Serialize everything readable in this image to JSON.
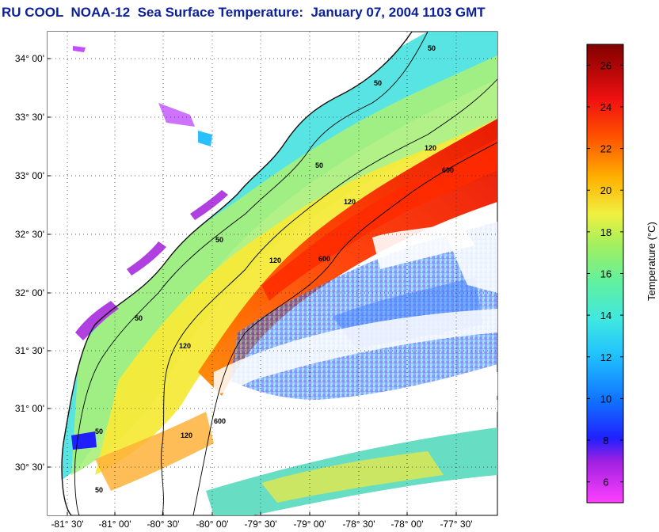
{
  "title": "RU COOL  NOAA-12  Sea Surface Temperature:  January 07, 2004 1103 GMT",
  "map": {
    "lat_ticks": [
      "34° 00'",
      "33° 30'",
      "33° 00'",
      "32° 30'",
      "32° 00'",
      "31° 30'",
      "31° 00'",
      "30° 30'"
    ],
    "lon_ticks": [
      "-81° 30'",
      "-81° 00'",
      "-80° 30'",
      "-80° 00'",
      "-79° 30'",
      "-79° 00'",
      "-78° 30'",
      "-78° 00'",
      "-77° 30'"
    ],
    "contour_labels": [
      "50",
      "50",
      "50",
      "50",
      "50",
      "50",
      "50",
      "120",
      "120",
      "120",
      "120",
      "120",
      "600",
      "600",
      "600"
    ]
  },
  "colorbar": {
    "label": "Temperature (°C)",
    "ticks": [
      "26",
      "24",
      "22",
      "20",
      "18",
      "16",
      "14",
      "12",
      "10",
      "8",
      "6"
    ],
    "min": 5,
    "max": 27
  },
  "colors": {
    "title": "#0c1f9c",
    "land": "#ffffff",
    "coast": "#111111"
  }
}
